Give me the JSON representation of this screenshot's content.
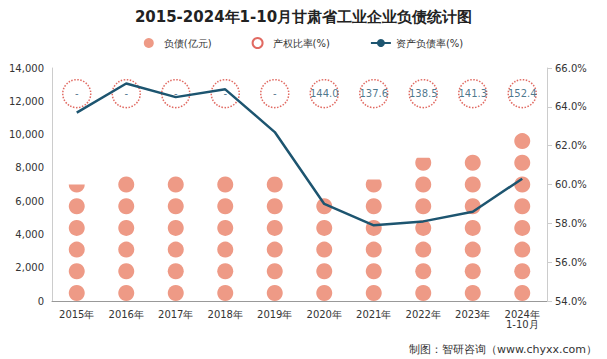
{
  "chart_data": {
    "type": "bar",
    "title": "2015-2024年1-10月甘肃省工业企业负债统计图",
    "categories": [
      "2015年",
      "2016年",
      "2017年",
      "2018年",
      "2019年",
      "2020年",
      "2021年",
      "2022年",
      "2023年",
      "2024年\n1-10月"
    ],
    "series": [
      {
        "name": "负债(亿元)",
        "type": "bar",
        "marker": "circle",
        "color": "#ee9a86",
        "values": [
          7000,
          7600,
          7600,
          7600,
          7500,
          6200,
          7300,
          8600,
          9000,
          10400
        ]
      },
      {
        "name": "产权比率(%)",
        "type": "scatter",
        "marker": "circle",
        "line_style": "dotted",
        "color": "#d9453b",
        "data_labels": true,
        "values": [
          null,
          null,
          null,
          null,
          null,
          144.0,
          137.6,
          138.5,
          141.3,
          152.4
        ],
        "value_labels": [
          "-",
          "-",
          "-",
          "-",
          "-",
          "144.0",
          "137.6",
          "138.5",
          "141.3",
          "152.4"
        ]
      },
      {
        "name": "资产负债率(%)",
        "type": "line",
        "axis": "y2",
        "color": "#1d5570",
        "values": [
          63.7,
          65.2,
          64.5,
          64.9,
          62.7,
          59.0,
          57.9,
          58.1,
          58.6,
          60.3
        ]
      }
    ],
    "ylim": [
      0,
      14000
    ],
    "yticks": [
      0,
      2000,
      4000,
      6000,
      8000,
      10000,
      12000,
      14000
    ],
    "y2lim": [
      54,
      66
    ],
    "y2ticks": [
      {
        "value": 54,
        "label": "54.0%"
      },
      {
        "value": 56,
        "label": "56.0%"
      },
      {
        "value": 58,
        "label": "58.0%"
      },
      {
        "value": 60,
        "label": "60.0%"
      },
      {
        "value": 62,
        "label": "62.0%"
      },
      {
        "value": 64,
        "label": "64.0%"
      },
      {
        "value": 66,
        "label": "66.0%"
      }
    ],
    "legend": "top",
    "grid": false,
    "annotations": [
      "制图：智研咨询（www.chyxx.com）"
    ]
  }
}
